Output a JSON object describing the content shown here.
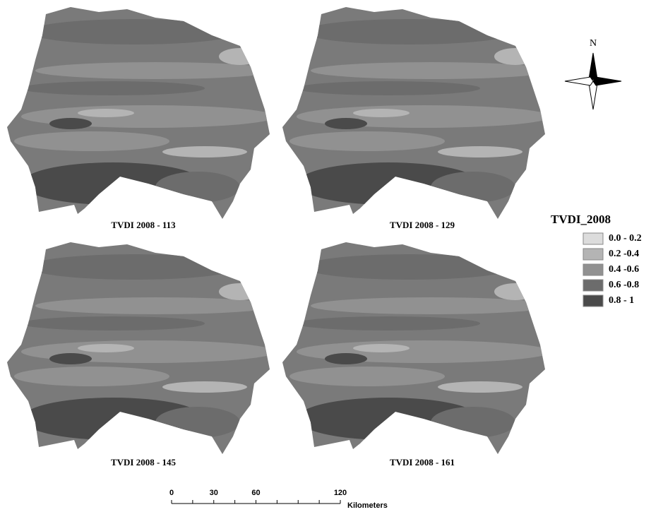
{
  "panels": [
    {
      "title": "TVDI 2008 - 113"
    },
    {
      "title": "TVDI 2008 - 129"
    },
    {
      "title": "TVDI 2008 - 145"
    },
    {
      "title": "TVDI 2008 - 161"
    }
  ],
  "legend": {
    "title": "TVDI_2008",
    "items": [
      {
        "label": "0.0 - 0.2",
        "color": "#dcdcdc"
      },
      {
        "label": "0.2 -0.4",
        "color": "#b4b4b4"
      },
      {
        "label": "0.4 -0.6",
        "color": "#919191"
      },
      {
        "label": "0.6 -0.8",
        "color": "#6c6c6c"
      },
      {
        "label": "0.8 - 1",
        "color": "#4a4a4a"
      }
    ]
  },
  "north_arrow": {
    "label": "N"
  },
  "scale_bar": {
    "ticks": [
      0,
      30,
      60,
      120
    ],
    "unit": "Kilometers"
  }
}
